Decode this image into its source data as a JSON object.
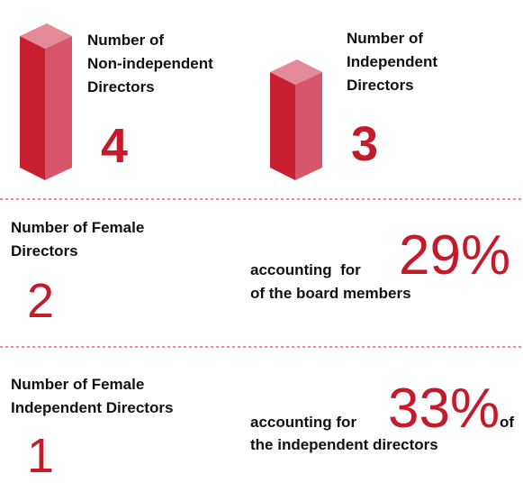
{
  "blocks": [
    {
      "label": [
        "Number of",
        "Non-independent",
        "Directors"
      ],
      "value": 4
    },
    {
      "label": [
        "Number of",
        "Independent",
        "Directors"
      ],
      "value": 3
    }
  ],
  "female": {
    "label": [
      "Number of Female",
      "Directors"
    ],
    "value": 2,
    "text_before": "accounting  for",
    "percent": "29%",
    "text_after": [
      "of the board members"
    ]
  },
  "female_independent": {
    "label": [
      "Number of Female",
      "Independent Directors"
    ],
    "value": 1,
    "text_before": "accounting for",
    "percent": "33%",
    "text_after": [
      "of",
      "the independent directors"
    ]
  }
}
